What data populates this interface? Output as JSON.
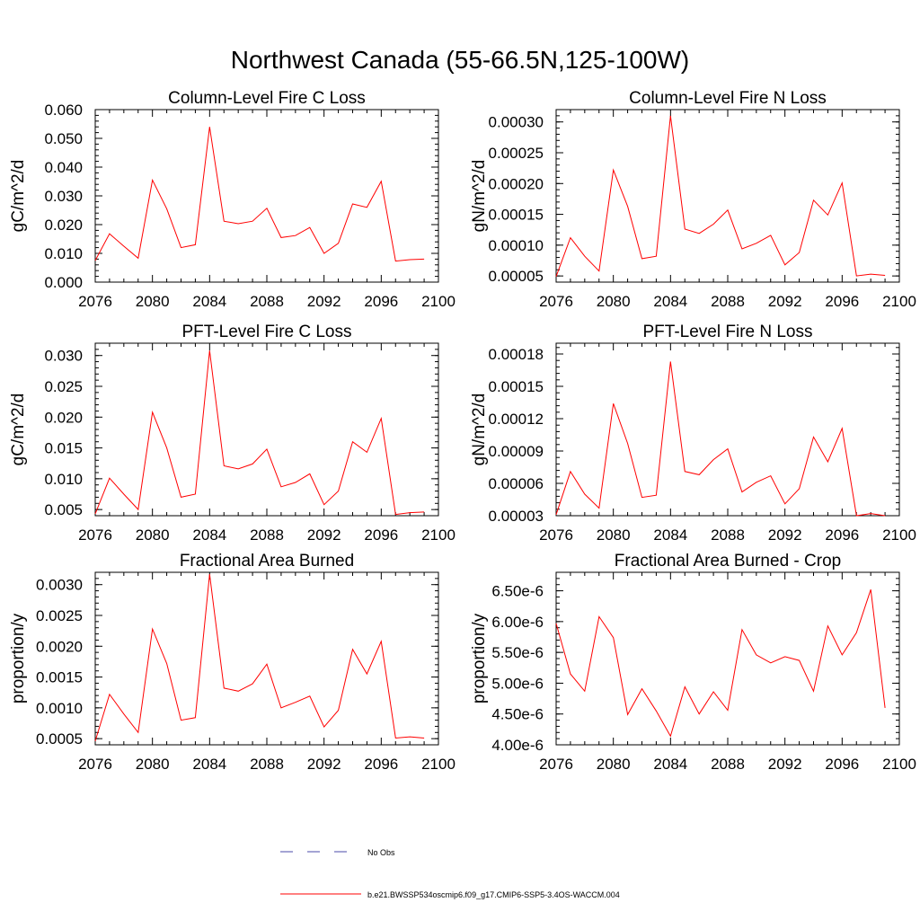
{
  "figure": {
    "title": "Northwest Canada (55-66.5N,125-100W)"
  },
  "chart_data": [
    {
      "type": "line",
      "title": "Column-Level Fire C Loss",
      "ylabel": "gC/m^2/d",
      "xlabel": "",
      "xlim": [
        2076,
        2100
      ],
      "ylim": [
        0.0,
        0.06
      ],
      "xticks": [
        2076,
        2080,
        2084,
        2088,
        2092,
        2096,
        2100
      ],
      "yticks": [
        0.0,
        0.01,
        0.02,
        0.03,
        0.04,
        0.05,
        0.06
      ],
      "ytick_labels": [
        "0.000",
        "0.010",
        "0.020",
        "0.030",
        "0.040",
        "0.050",
        "0.060"
      ],
      "series": [
        {
          "name": "b.e21.BWSSP534oscmip6.f09_g17.CMIP6-SSP5-3.4OS-WACCM.004",
          "color": "#ff0000",
          "x": [
            2076,
            2077,
            2078,
            2079,
            2080,
            2081,
            2082,
            2083,
            2084,
            2085,
            2086,
            2087,
            2088,
            2089,
            2090,
            2091,
            2092,
            2093,
            2094,
            2095,
            2096,
            2097,
            2098,
            2099
          ],
          "values": [
            0.0075,
            0.0168,
            0.0125,
            0.0083,
            0.0355,
            0.0255,
            0.012,
            0.013,
            0.054,
            0.0212,
            0.0203,
            0.0212,
            0.0257,
            0.0155,
            0.0162,
            0.019,
            0.01,
            0.0135,
            0.0272,
            0.026,
            0.0351,
            0.0073,
            0.0078,
            0.008
          ]
        }
      ]
    },
    {
      "type": "line",
      "title": "Column-Level Fire N Loss",
      "ylabel": "gN/m^2/d",
      "xlabel": "",
      "xlim": [
        2076,
        2100
      ],
      "ylim": [
        4e-05,
        0.00032
      ],
      "xticks": [
        2076,
        2080,
        2084,
        2088,
        2092,
        2096,
        2100
      ],
      "yticks": [
        5e-05,
        0.0001,
        0.00015,
        0.0002,
        0.00025,
        0.0003
      ],
      "ytick_labels": [
        "0.00005",
        "0.00010",
        "0.00015",
        "0.00020",
        "0.00025",
        "0.00030"
      ],
      "series": [
        {
          "name": "b.e21.BWSSP534oscmip6.f09_g17.CMIP6-SSP5-3.4OS-WACCM.004",
          "color": "#ff0000",
          "x": [
            2076,
            2077,
            2078,
            2079,
            2080,
            2081,
            2082,
            2083,
            2084,
            2085,
            2086,
            2087,
            2088,
            2089,
            2090,
            2091,
            2092,
            2093,
            2094,
            2095,
            2096,
            2097,
            2098,
            2099
          ],
          "values": [
            4.9e-05,
            0.000112,
            8.2e-05,
            5.8e-05,
            0.000222,
            0.000163,
            7.8e-05,
            8.2e-05,
            0.00031,
            0.000126,
            0.000119,
            0.000134,
            0.000157,
            9.4e-05,
            0.000103,
            0.000116,
            6.8e-05,
            8.8e-05,
            0.000173,
            0.000149,
            0.000201,
            5e-05,
            5.3e-05,
            5.1e-05
          ]
        }
      ]
    },
    {
      "type": "line",
      "title": "PFT-Level Fire C Loss",
      "ylabel": "gC/m^2/d",
      "xlabel": "",
      "xlim": [
        2076,
        2100
      ],
      "ylim": [
        0.004,
        0.032
      ],
      "xticks": [
        2076,
        2080,
        2084,
        2088,
        2092,
        2096,
        2100
      ],
      "yticks": [
        0.005,
        0.01,
        0.015,
        0.02,
        0.025,
        0.03
      ],
      "ytick_labels": [
        "0.005",
        "0.010",
        "0.015",
        "0.020",
        "0.025",
        "0.030"
      ],
      "series": [
        {
          "name": "b.e21.BWSSP534oscmip6.f09_g17.CMIP6-SSP5-3.4OS-WACCM.004",
          "color": "#ff0000",
          "x": [
            2076,
            2077,
            2078,
            2079,
            2080,
            2081,
            2082,
            2083,
            2084,
            2085,
            2086,
            2087,
            2088,
            2089,
            2090,
            2091,
            2092,
            2093,
            2094,
            2095,
            2096,
            2097,
            2098,
            2099
          ],
          "values": [
            0.0043,
            0.0101,
            0.0075,
            0.005,
            0.0208,
            0.015,
            0.007,
            0.0075,
            0.0308,
            0.0121,
            0.0116,
            0.0124,
            0.0148,
            0.0087,
            0.0094,
            0.0108,
            0.0058,
            0.008,
            0.016,
            0.0143,
            0.0198,
            0.0042,
            0.0045,
            0.0046
          ]
        }
      ]
    },
    {
      "type": "line",
      "title": "PFT-Level Fire N Loss",
      "ylabel": "gN/m^2/d",
      "xlabel": "",
      "xlim": [
        2076,
        2100
      ],
      "ylim": [
        3e-05,
        0.00019
      ],
      "xticks": [
        2076,
        2080,
        2084,
        2088,
        2092,
        2096,
        2100
      ],
      "yticks": [
        3e-05,
        6e-05,
        9e-05,
        0.00012,
        0.00015,
        0.00018
      ],
      "ytick_labels": [
        "0.00003",
        "0.00006",
        "0.00009",
        "0.00012",
        "0.00015",
        "0.00018"
      ],
      "series": [
        {
          "name": "b.e21.BWSSP534oscmip6.f09_g17.CMIP6-SSP5-3.4OS-WACCM.004",
          "color": "#ff0000",
          "x": [
            2076,
            2077,
            2078,
            2079,
            2080,
            2081,
            2082,
            2083,
            2084,
            2085,
            2086,
            2087,
            2088,
            2089,
            2090,
            2091,
            2092,
            2093,
            2094,
            2095,
            2096,
            2097,
            2098,
            2099
          ],
          "values": [
            3.1e-05,
            7.1e-05,
            5e-05,
            3.7e-05,
            0.000134,
            9.7e-05,
            4.7e-05,
            4.9e-05,
            0.000173,
            7.1e-05,
            6.8e-05,
            8.2e-05,
            9.2e-05,
            5.2e-05,
            6.1e-05,
            6.7e-05,
            4.1e-05,
            5.5e-05,
            0.000103,
            8e-05,
            0.000111,
            3e-05,
            3.2e-05,
            3e-05
          ]
        }
      ]
    },
    {
      "type": "line",
      "title": "Fractional Area Burned",
      "ylabel": "proportion/y",
      "xlabel": "",
      "xlim": [
        2076,
        2100
      ],
      "ylim": [
        0.0004,
        0.0032
      ],
      "xticks": [
        2076,
        2080,
        2084,
        2088,
        2092,
        2096,
        2100
      ],
      "yticks": [
        0.0005,
        0.001,
        0.0015,
        0.002,
        0.0025,
        0.003
      ],
      "ytick_labels": [
        "0.0005",
        "0.0010",
        "0.0015",
        "0.0020",
        "0.0025",
        "0.0030"
      ],
      "series": [
        {
          "name": "b.e21.BWSSP534oscmip6.f09_g17.CMIP6-SSP5-3.4OS-WACCM.004",
          "color": "#ff0000",
          "x": [
            2076,
            2077,
            2078,
            2079,
            2080,
            2081,
            2082,
            2083,
            2084,
            2085,
            2086,
            2087,
            2088,
            2089,
            2090,
            2091,
            2092,
            2093,
            2094,
            2095,
            2096,
            2097,
            2098,
            2099
          ],
          "values": [
            0.00046,
            0.00122,
            0.0009,
            0.0006,
            0.00228,
            0.00172,
            0.0008,
            0.00084,
            0.00317,
            0.00132,
            0.00127,
            0.00139,
            0.00171,
            0.001,
            0.00109,
            0.00119,
            0.00069,
            0.00096,
            0.00195,
            0.00155,
            0.00208,
            0.00051,
            0.00053,
            0.00051
          ]
        }
      ]
    },
    {
      "type": "line",
      "title": "Fractional Area Burned - Crop",
      "ylabel": "proportion/y",
      "xlabel": "",
      "xlim": [
        2076,
        2100
      ],
      "ylim": [
        4e-06,
        6.8e-06
      ],
      "xticks": [
        2076,
        2080,
        2084,
        2088,
        2092,
        2096,
        2100
      ],
      "yticks": [
        4e-06,
        4.5e-06,
        5e-06,
        5.5e-06,
        6e-06,
        6.5e-06
      ],
      "ytick_labels": [
        "4.00e-6",
        "4.50e-6",
        "5.00e-6",
        "5.50e-6",
        "6.00e-6",
        "6.50e-6"
      ],
      "series": [
        {
          "name": "b.e21.BWSSP534oscmip6.f09_g17.CMIP6-SSP5-3.4OS-WACCM.004",
          "color": "#ff0000",
          "x": [
            2076,
            2077,
            2078,
            2079,
            2080,
            2081,
            2082,
            2083,
            2084,
            2085,
            2086,
            2087,
            2088,
            2089,
            2090,
            2091,
            2092,
            2093,
            2094,
            2095,
            2096,
            2097,
            2098,
            2099
          ],
          "values": [
            5.97e-06,
            5.15e-06,
            4.87e-06,
            6.08e-06,
            5.74e-06,
            4.49e-06,
            4.91e-06,
            4.55e-06,
            4.14e-06,
            4.94e-06,
            4.5e-06,
            4.86e-06,
            4.56e-06,
            5.87e-06,
            5.46e-06,
            5.33e-06,
            5.43e-06,
            5.37e-06,
            4.87e-06,
            5.93e-06,
            5.46e-06,
            5.82e-06,
            6.52e-06,
            4.6e-06
          ]
        }
      ]
    }
  ],
  "legend": {
    "entries": [
      {
        "label": "No Obs",
        "color": "#4a4aa8",
        "style": "dashed"
      },
      {
        "label": "b.e21.BWSSP534oscmip6.f09_g17.CMIP6-SSP5-3.4OS-WACCM.004",
        "color": "#ff0000",
        "style": "solid"
      }
    ]
  }
}
